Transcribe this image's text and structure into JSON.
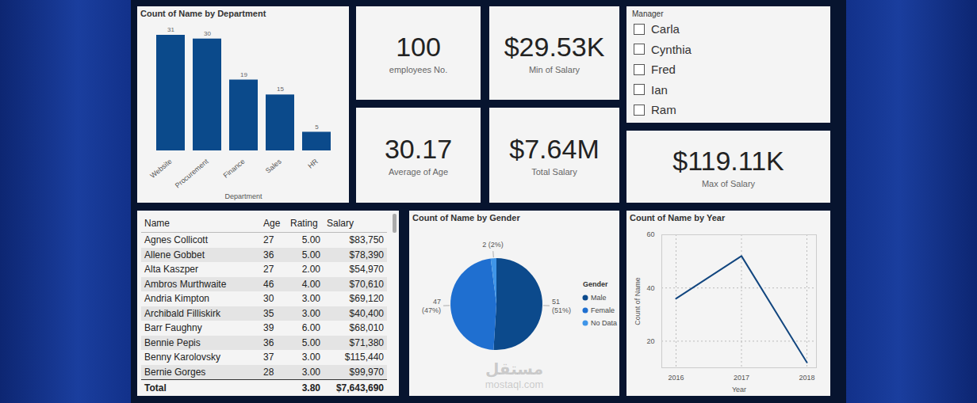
{
  "dashboard": {
    "cards": [
      {
        "value": "100",
        "label": "employees No."
      },
      {
        "value": "$29.53K",
        "label": "Min of Salary"
      },
      {
        "value": "30.17",
        "label": "Average of Age"
      },
      {
        "value": "$7.64M",
        "label": "Total Salary"
      },
      {
        "value": "$119.11K",
        "label": "Max of Salary"
      }
    ],
    "slicer": {
      "title": "Manager",
      "items": [
        "Carla",
        "Cynthia",
        "Fred",
        "Ian",
        "Ram"
      ]
    },
    "table": {
      "columns": [
        "Name",
        "Age",
        "Rating",
        "Salary"
      ],
      "rows": [
        [
          "Agnes Collicott",
          "27",
          "5.00",
          "$83,750"
        ],
        [
          "Allene Gobbet",
          "36",
          "5.00",
          "$78,390"
        ],
        [
          "Alta Kaszper",
          "27",
          "2.00",
          "$54,970"
        ],
        [
          "Ambros Murthwaite",
          "46",
          "4.00",
          "$70,610"
        ],
        [
          "Andria Kimpton",
          "30",
          "3.00",
          "$69,120"
        ],
        [
          "Archibald Filliskirk",
          "35",
          "3.00",
          "$40,400"
        ],
        [
          "Barr Faughny",
          "39",
          "6.00",
          "$68,010"
        ],
        [
          "Bennie Pepis",
          "36",
          "5.00",
          "$71,380"
        ],
        [
          "Benny Karolovsky",
          "37",
          "3.00",
          "$115,440"
        ],
        [
          "Bernie Gorges",
          "28",
          "3.00",
          "$99,970"
        ]
      ],
      "total": [
        "Total",
        null,
        "3.80",
        "$7,643,690"
      ]
    },
    "watermark": [
      "مستقل",
      "mostaql.com"
    ]
  },
  "chart_data": [
    {
      "type": "bar",
      "title": "Count of Name by Department",
      "categories": [
        "Website",
        "Procurement",
        "Finance",
        "Sales",
        "HR"
      ],
      "values": [
        31,
        30,
        19,
        15,
        5
      ],
      "xlabel": "Department",
      "color": "#0b4a8b",
      "ylim": [
        0,
        31
      ],
      "data_labels": true,
      "tick_labels": "x"
    },
    {
      "type": "pie",
      "title": "Count of Name by Gender",
      "categories": [
        "Male",
        "Female",
        "No Data"
      ],
      "values": [
        51,
        47,
        2
      ],
      "value_labels": [
        "51 (51%)",
        "47 (47%)",
        "2 (2%)"
      ],
      "colors": [
        "#0c4a8c",
        "#1f6fd0",
        "#3f95e8"
      ],
      "legend_title": "Gender",
      "legend": "right",
      "data_labels": true
    },
    {
      "type": "line",
      "title": "Count of Name by Year",
      "x": [
        2016,
        2017,
        2018
      ],
      "values": [
        36,
        52,
        12
      ],
      "xlabel": "Year",
      "ylabel": "Count of Name",
      "color": "#12467f",
      "xlim": [
        2016,
        2018
      ],
      "xticks": [
        2016,
        2017,
        2018
      ],
      "ylim": [
        10,
        60
      ],
      "yticks": [
        20,
        40,
        60
      ],
      "grid": true
    }
  ]
}
